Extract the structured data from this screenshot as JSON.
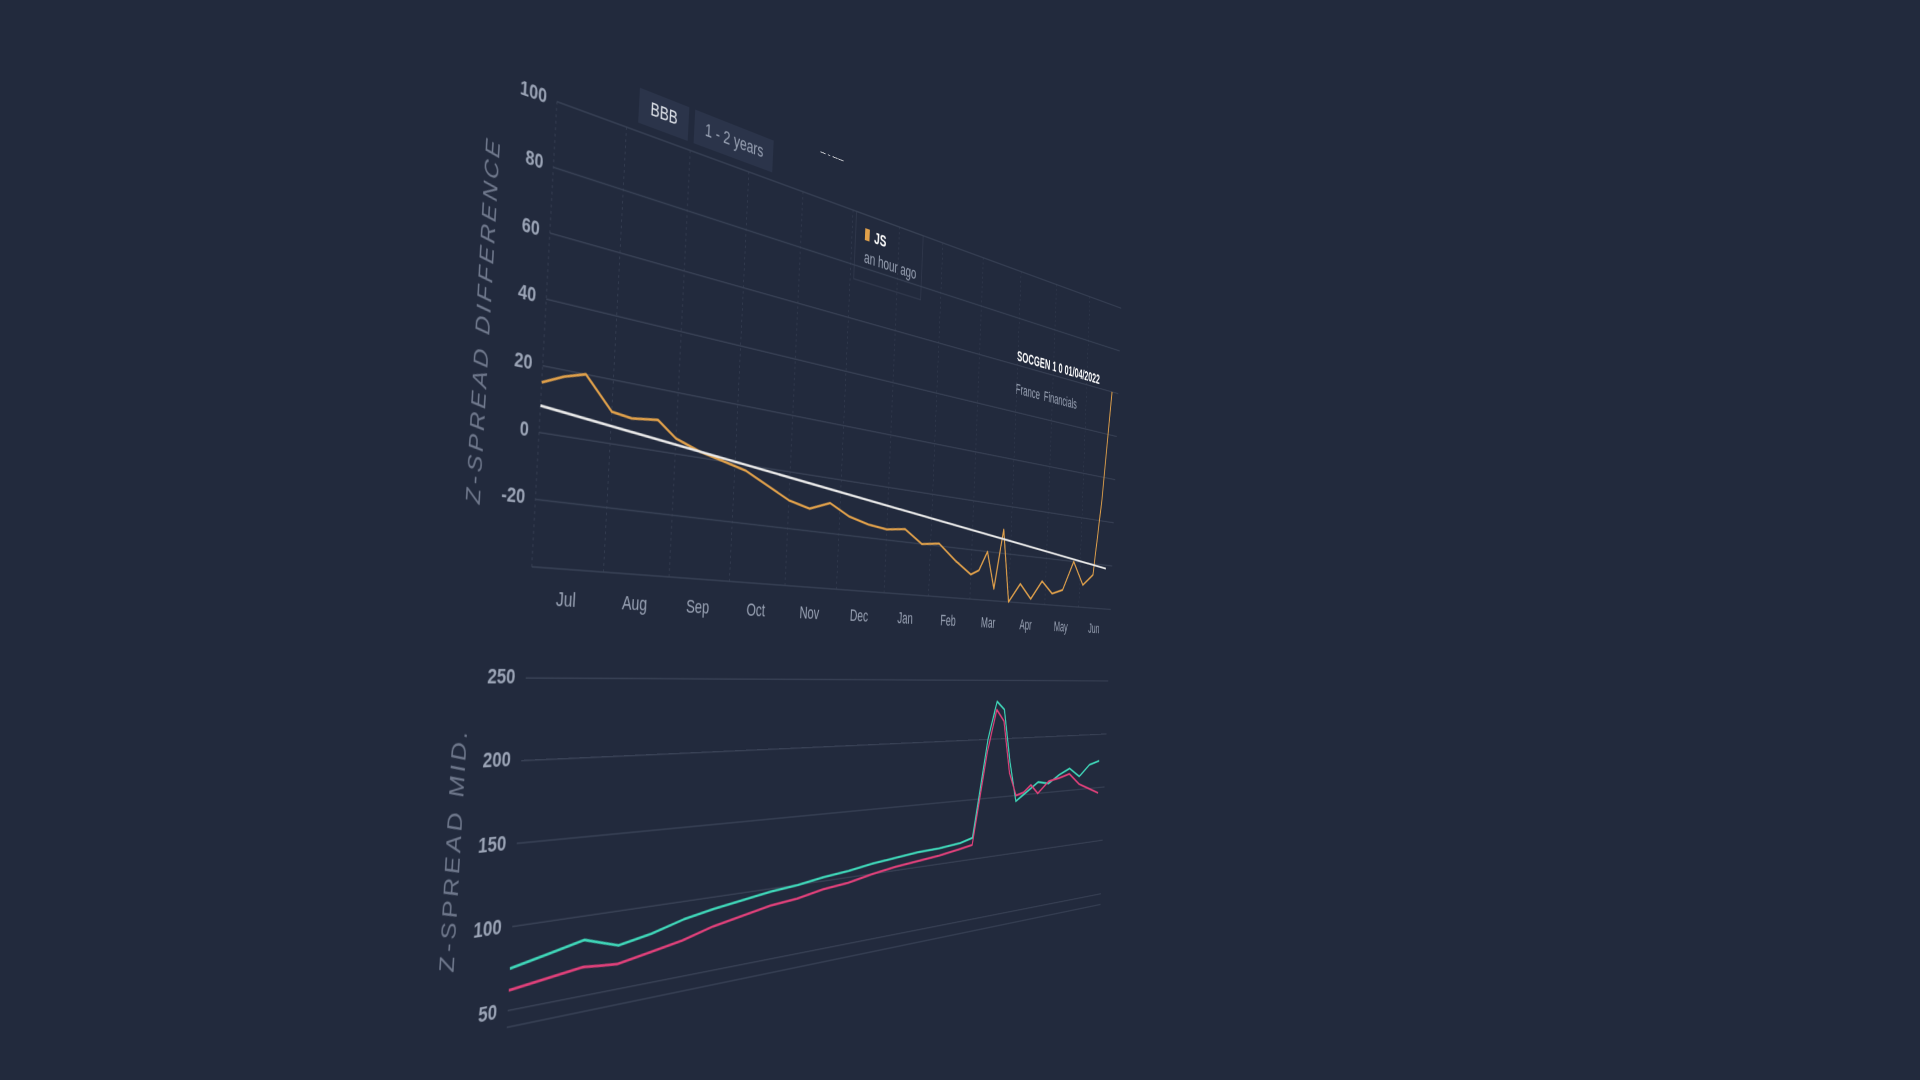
{
  "chart_data": [
    {
      "type": "line",
      "title": "2022",
      "tags": [
        "BBB",
        "1 - 2 years"
      ],
      "y_label": "Z-SPREAD DIFFERENCE",
      "annotations": {
        "bond": "SOCGEN 1 0 01/04/2022",
        "country": "France",
        "sector": "Financials",
        "note": "JS",
        "note_time": "an hour ago"
      },
      "xlim": [
        0,
        12
      ],
      "xticks": [
        {
          "value": 0,
          "label": "Jul"
        },
        {
          "value": 1,
          "label": "Aug"
        },
        {
          "value": 2,
          "label": "Sep"
        },
        {
          "value": 3,
          "label": "Oct"
        },
        {
          "value": 4,
          "label": "Nov"
        },
        {
          "value": 5,
          "label": "Dec"
        },
        {
          "value": 6,
          "label": "Jan"
        },
        {
          "value": 7,
          "label": "Feb"
        },
        {
          "value": 8,
          "label": "Mar"
        },
        {
          "value": 9,
          "label": "Apr"
        },
        {
          "value": 10,
          "label": "May"
        },
        {
          "value": 11,
          "label": "Jun"
        }
      ],
      "ylim": [
        -40,
        100
      ],
      "yticks": [
        -20,
        0,
        20,
        40,
        60,
        80,
        100
      ],
      "grid": true,
      "series": [
        {
          "color": "#e0a04a",
          "x": [
            0,
            0.3,
            0.6,
            1.0,
            1.3,
            1.7,
            2.0,
            2.4,
            2.8,
            3.2,
            3.6,
            4.0,
            4.4,
            4.8,
            5.2,
            5.6,
            6.0,
            6.4,
            6.8,
            7.2,
            7.6,
            8.0,
            8.2,
            8.4,
            8.6,
            8.8,
            9.0,
            9.3,
            9.6,
            9.9,
            10.2,
            10.5,
            10.8,
            11.1,
            11.4,
            11.6,
            11.8
          ],
          "values": [
            15,
            18,
            20,
            10,
            9,
            10,
            5,
            2,
            0,
            -2,
            -6,
            -10,
            -12,
            -9,
            -13,
            -15,
            -16,
            -15,
            -20,
            -19,
            -25,
            -30,
            -28,
            -20,
            -35,
            -10,
            -40,
            -32,
            -38,
            -30,
            -35,
            -33,
            -20,
            -30,
            -25,
            10,
            60
          ]
        },
        {
          "color": "#e8e8e8",
          "x": [
            0,
            11.8
          ],
          "values": [
            8,
            -21.5
          ]
        }
      ]
    },
    {
      "type": "line",
      "y_label": "Z-SPREAD MID.",
      "xlim": [
        0,
        12
      ],
      "ylim": [
        40,
        260
      ],
      "yticks": [
        50,
        100,
        150,
        200,
        250
      ],
      "grid": true,
      "series": [
        {
          "color": "#3fd6b8",
          "x": [
            0,
            0.5,
            1,
            1.5,
            2,
            2.5,
            3,
            3.5,
            4,
            4.5,
            5,
            5.5,
            6,
            6.5,
            7,
            7.5,
            8,
            8.3,
            8.6,
            8.8,
            9.0,
            9.2,
            9.4,
            9.6,
            9.8,
            10.0,
            10.3,
            10.6,
            10.9,
            11.2,
            11.5,
            11.8
          ],
          "values": [
            75,
            80,
            85,
            78,
            82,
            88,
            92,
            95,
            98,
            100,
            103,
            105,
            108,
            110,
            112,
            113,
            115,
            118,
            200,
            232,
            225,
            180,
            145,
            150,
            155,
            160,
            158,
            165,
            170,
            162,
            172,
            175
          ]
        },
        {
          "color": "#e0407a",
          "x": [
            0,
            0.5,
            1,
            1.5,
            2,
            2.5,
            3,
            3.5,
            4,
            4.5,
            5,
            5.5,
            6,
            6.5,
            7,
            7.5,
            8,
            8.3,
            8.6,
            8.8,
            9.0,
            9.2,
            9.4,
            9.6,
            9.8,
            10.0,
            10.3,
            10.6,
            10.9,
            11.2,
            11.5,
            11.8
          ],
          "values": [
            62,
            65,
            68,
            66,
            70,
            74,
            80,
            84,
            88,
            90,
            94,
            96,
            100,
            103,
            105,
            107,
            110,
            112,
            190,
            225,
            215,
            170,
            150,
            152,
            158,
            150,
            160,
            162,
            165,
            155,
            150,
            145
          ]
        }
      ]
    }
  ]
}
